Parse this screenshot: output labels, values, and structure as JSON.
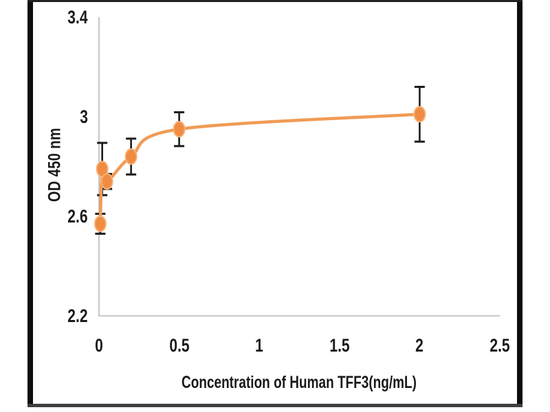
{
  "chart_data": {
    "type": "line",
    "title": "",
    "xlabel": "Concentration of Human TFF3(ng/mL)",
    "ylabel": "OD 450 nm",
    "x_ticks": [
      "0",
      "0.5",
      "1",
      "1.5",
      "2",
      "2.5"
    ],
    "y_ticks": [
      "3.4",
      "3",
      "2.6",
      "2.2"
    ],
    "xlim": [
      0,
      2.5
    ],
    "ylim": [
      2.2,
      3.4
    ],
    "grid": false,
    "legend": false,
    "axis_color": "#b9b9b9",
    "text_color": "#1a1a1a",
    "frame_color": "#0d0d0d",
    "series": [
      {
        "x": [
          0.008,
          0.02,
          0.05,
          0.2,
          0.5,
          2
        ],
        "y": [
          2.57,
          2.79,
          2.74,
          2.84,
          2.95,
          3.01
        ],
        "y_err": [
          0.04,
          0.105,
          0.03,
          0.072,
          0.068,
          0.11
        ],
        "line_color": "#F09B55",
        "marker_color": "#F08C42",
        "marker_edge_color": "#F6B277",
        "error_bar_color": "#1c1c1c"
      }
    ]
  }
}
